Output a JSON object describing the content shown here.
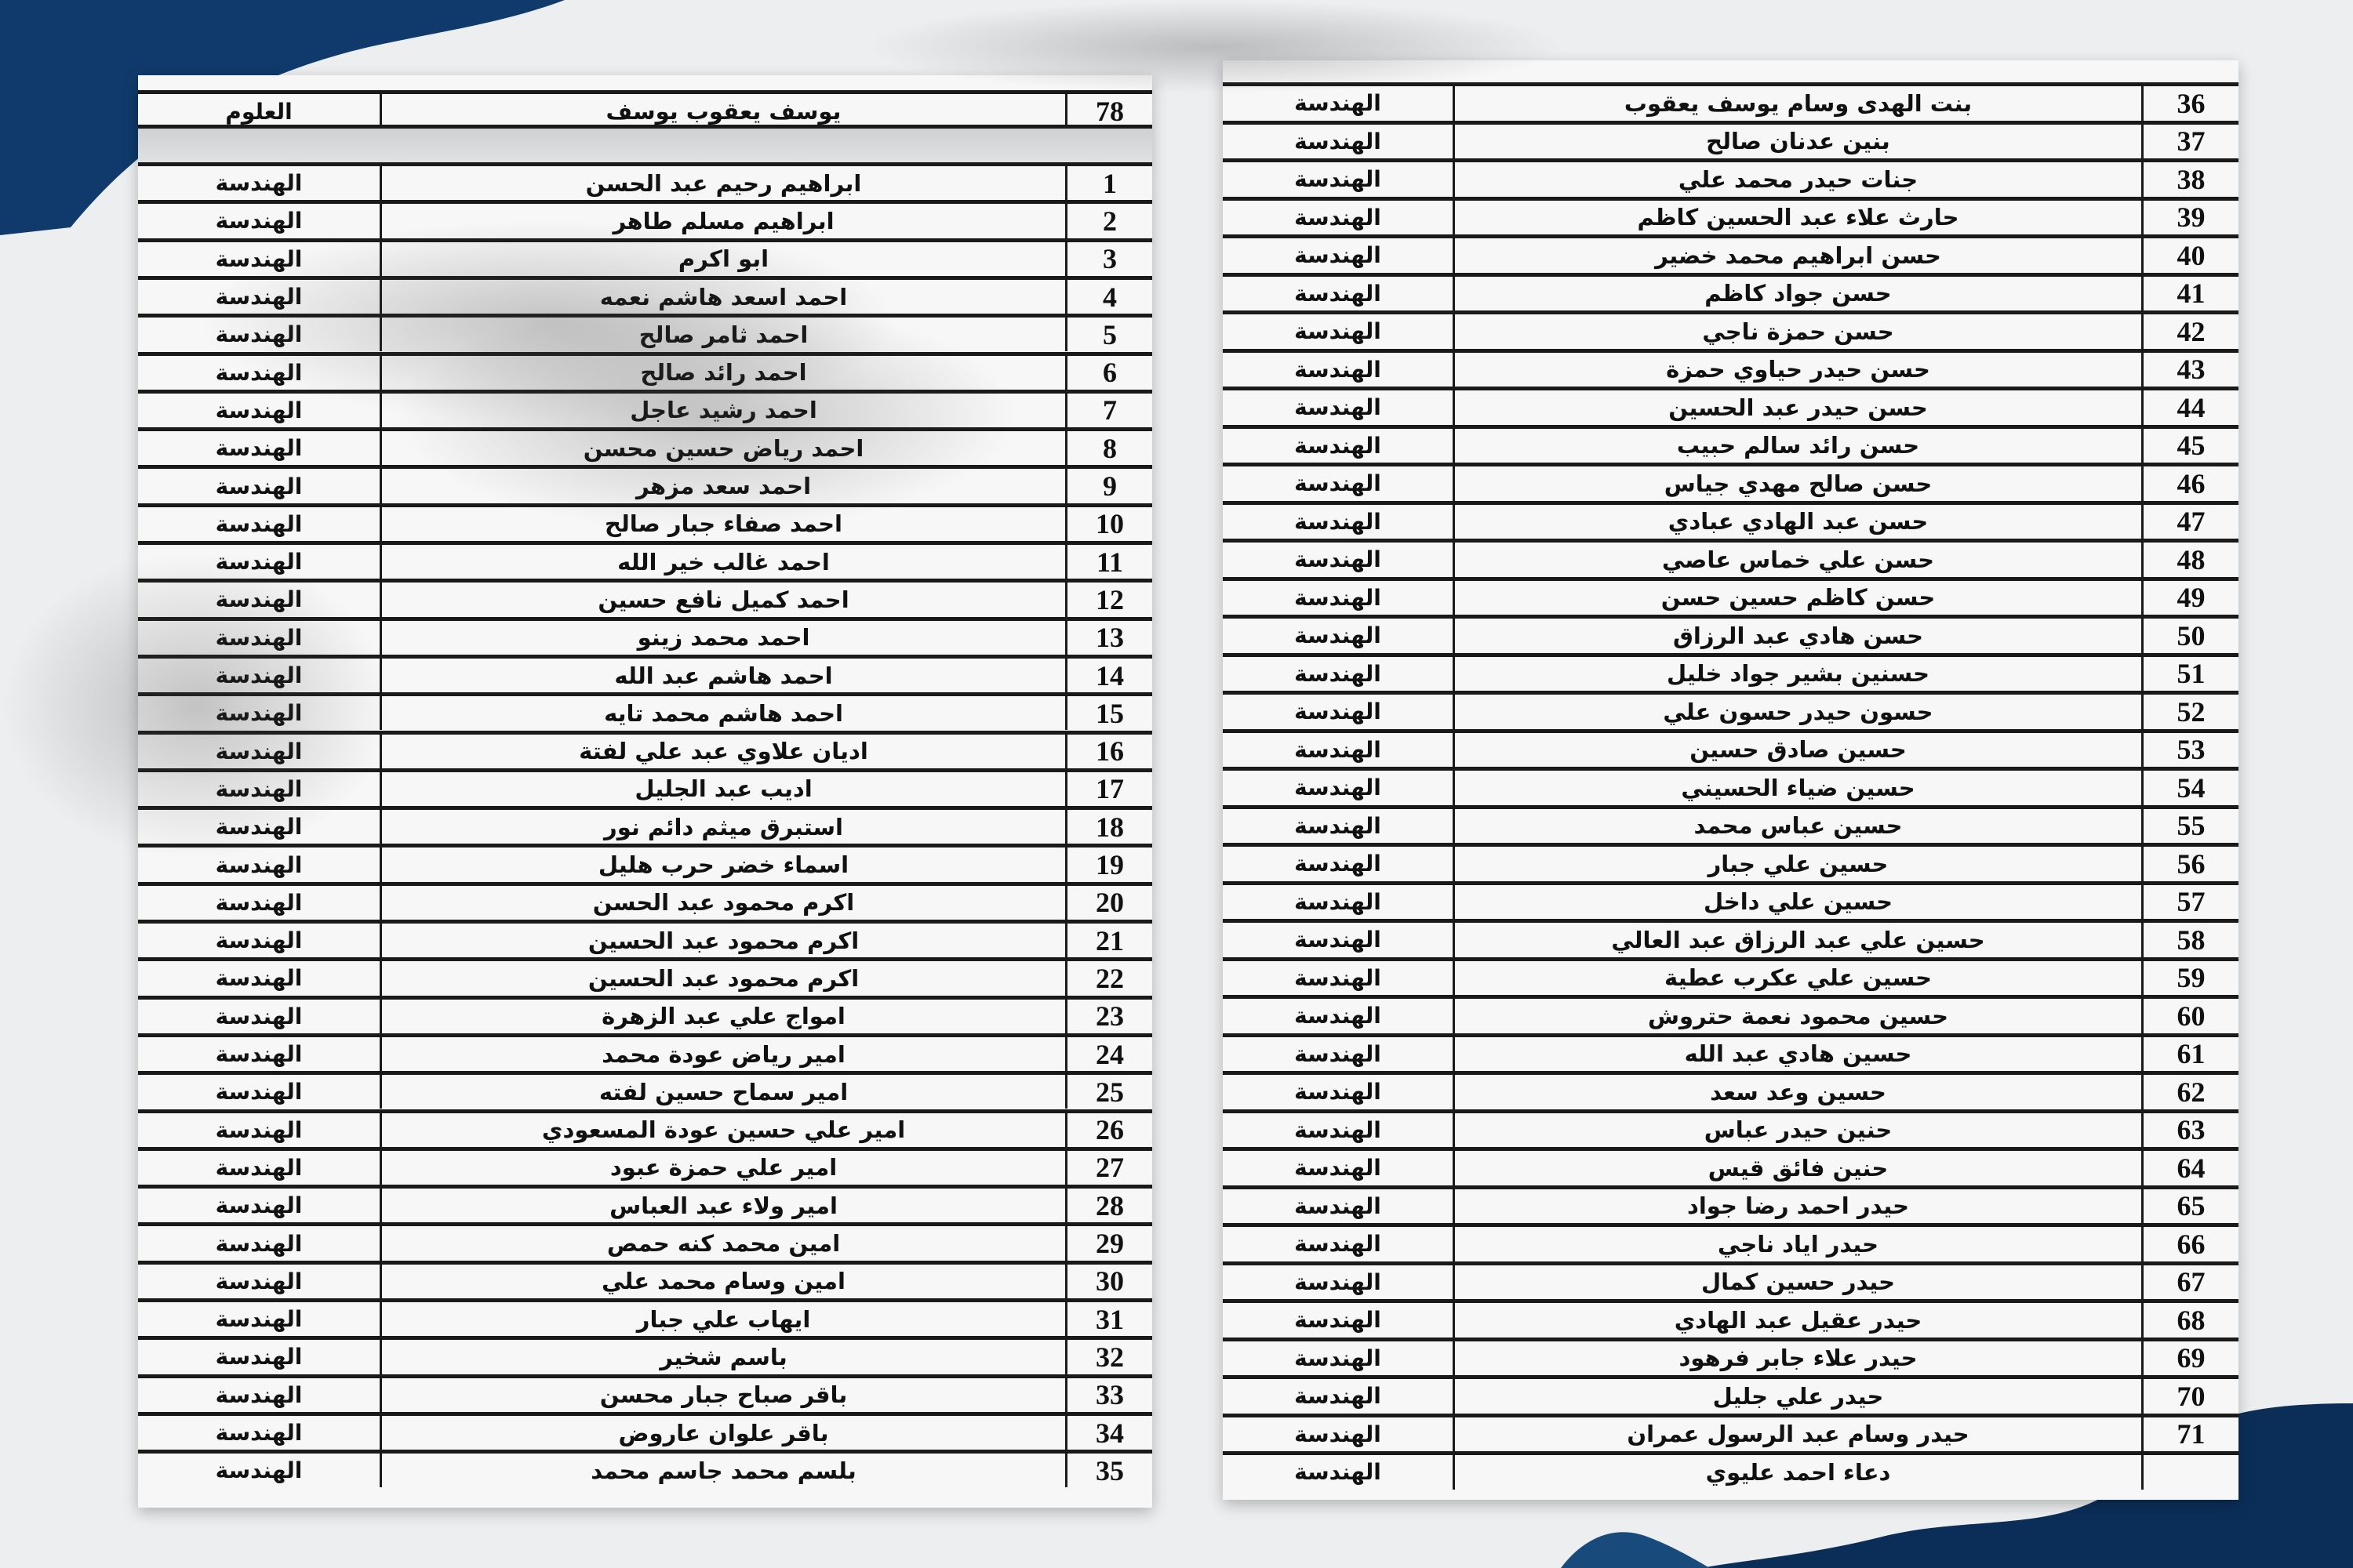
{
  "colors": {
    "brand_blue": "#0f3a6b",
    "background": "#eceef0",
    "paper": "#f7f7f7"
  },
  "left_table": {
    "header": {
      "num": "78",
      "name": "يوسف يعقوب يوسف",
      "dept": "العلوم"
    },
    "rows": [
      [
        "1",
        "ابراهيم رحيم عبد الحسن",
        "الهندسة"
      ],
      [
        "2",
        "ابراهيم مسلم طاهر",
        "الهندسة"
      ],
      [
        "3",
        "ابو اكرم",
        "الهندسة"
      ],
      [
        "4",
        "احمد اسعد هاشم نعمه",
        "الهندسة"
      ],
      [
        "5",
        "احمد ثامر صالح",
        "الهندسة"
      ],
      [
        "6",
        "احمد رائد صالح",
        "الهندسة"
      ],
      [
        "7",
        "احمد رشيد عاجل",
        "الهندسة"
      ],
      [
        "8",
        "احمد رياض حسين محسن",
        "الهندسة"
      ],
      [
        "9",
        "احمد سعد مزهر",
        "الهندسة"
      ],
      [
        "10",
        "احمد صفاء جبار صالح",
        "الهندسة"
      ],
      [
        "11",
        "احمد غالب خير الله",
        "الهندسة"
      ],
      [
        "12",
        "احمد كميل نافع حسين",
        "الهندسة"
      ],
      [
        "13",
        "احمد محمد زينو",
        "الهندسة"
      ],
      [
        "14",
        "احمد هاشم عبد الله",
        "الهندسة"
      ],
      [
        "15",
        "احمد هاشم محمد تايه",
        "الهندسة"
      ],
      [
        "16",
        "اديان علاوي عبد علي لفتة",
        "الهندسة"
      ],
      [
        "17",
        "اديب عبد الجليل",
        "الهندسة"
      ],
      [
        "18",
        "استبرق ميثم دائم نور",
        "الهندسة"
      ],
      [
        "19",
        "اسماء خضر حرب هليل",
        "الهندسة"
      ],
      [
        "20",
        "اكرم محمود عبد الحسن",
        "الهندسة"
      ],
      [
        "21",
        "اكرم محمود عبد الحسين",
        "الهندسة"
      ],
      [
        "22",
        "اكرم محمود عبد الحسين",
        "الهندسة"
      ],
      [
        "23",
        "امواج علي عبد الزهرة",
        "الهندسة"
      ],
      [
        "24",
        "امير رياض عودة محمد",
        "الهندسة"
      ],
      [
        "25",
        "امير سماح حسين لفته",
        "الهندسة"
      ],
      [
        "26",
        "امير علي حسين عودة المسعودي",
        "الهندسة"
      ],
      [
        "27",
        "امير علي حمزة عبود",
        "الهندسة"
      ],
      [
        "28",
        "امير ولاء عبد العباس",
        "الهندسة"
      ],
      [
        "29",
        "امين محمد كنه حمص",
        "الهندسة"
      ],
      [
        "30",
        "امين وسام محمد علي",
        "الهندسة"
      ],
      [
        "31",
        "ايهاب علي جبار",
        "الهندسة"
      ],
      [
        "32",
        "باسم شخير",
        "الهندسة"
      ],
      [
        "33",
        "باقر صباح جبار محسن",
        "الهندسة"
      ],
      [
        "34",
        "باقر علوان عاروض",
        "الهندسة"
      ],
      [
        "35",
        "بلسم محمد جاسم محمد",
        "الهندسة"
      ]
    ]
  },
  "right_table": {
    "rows": [
      [
        "36",
        "بنت الهدى وسام يوسف يعقوب",
        "الهندسة"
      ],
      [
        "37",
        "بنين عدنان صالح",
        "الهندسة"
      ],
      [
        "38",
        "جنات حيدر محمد علي",
        "الهندسة"
      ],
      [
        "39",
        "حارث علاء عبد الحسين كاظم",
        "الهندسة"
      ],
      [
        "40",
        "حسن ابراهيم محمد خضير",
        "الهندسة"
      ],
      [
        "41",
        "حسن جواد كاظم",
        "الهندسة"
      ],
      [
        "42",
        "حسن حمزة ناجي",
        "الهندسة"
      ],
      [
        "43",
        "حسن حيدر حياوي حمزة",
        "الهندسة"
      ],
      [
        "44",
        "حسن حيدر عبد الحسين",
        "الهندسة"
      ],
      [
        "45",
        "حسن رائد سالم حبيب",
        "الهندسة"
      ],
      [
        "46",
        "حسن صالح مهدي جياس",
        "الهندسة"
      ],
      [
        "47",
        "حسن عبد الهادي عبادي",
        "الهندسة"
      ],
      [
        "48",
        "حسن علي خماس عاصي",
        "الهندسة"
      ],
      [
        "49",
        "حسن كاظم حسين حسن",
        "الهندسة"
      ],
      [
        "50",
        "حسن هادي عبد الرزاق",
        "الهندسة"
      ],
      [
        "51",
        "حسنين بشير جواد خليل",
        "الهندسة"
      ],
      [
        "52",
        "حسون حيدر حسون علي",
        "الهندسة"
      ],
      [
        "53",
        "حسين صادق حسين",
        "الهندسة"
      ],
      [
        "54",
        "حسين ضياء الحسيني",
        "الهندسة"
      ],
      [
        "55",
        "حسين عباس محمد",
        "الهندسة"
      ],
      [
        "56",
        "حسين علي جبار",
        "الهندسة"
      ],
      [
        "57",
        "حسين علي داخل",
        "الهندسة"
      ],
      [
        "58",
        "حسين علي عبد الرزاق عبد العالي",
        "الهندسة"
      ],
      [
        "59",
        "حسين علي عكرب عطية",
        "الهندسة"
      ],
      [
        "60",
        "حسين محمود نعمة حتروش",
        "الهندسة"
      ],
      [
        "61",
        "حسين هادي عبد الله",
        "الهندسة"
      ],
      [
        "62",
        "حسين وعد سعد",
        "الهندسة"
      ],
      [
        "63",
        "حنين حيدر عباس",
        "الهندسة"
      ],
      [
        "64",
        "حنين فائق قيس",
        "الهندسة"
      ],
      [
        "65",
        "حيدر احمد رضا جواد",
        "الهندسة"
      ],
      [
        "66",
        "حيدر اياد ناجي",
        "الهندسة"
      ],
      [
        "67",
        "حيدر حسين كمال",
        "الهندسة"
      ],
      [
        "68",
        "حيدر عقيل عبد الهادي",
        "الهندسة"
      ],
      [
        "69",
        "حيدر علاء جابر فرهود",
        "الهندسة"
      ],
      [
        "70",
        "حيدر علي جليل",
        "الهندسة"
      ],
      [
        "71",
        "حيدر وسام عبد الرسول عمران",
        "الهندسة"
      ],
      [
        "",
        "دعاء احمد عليوي",
        "الهندسة"
      ]
    ]
  }
}
